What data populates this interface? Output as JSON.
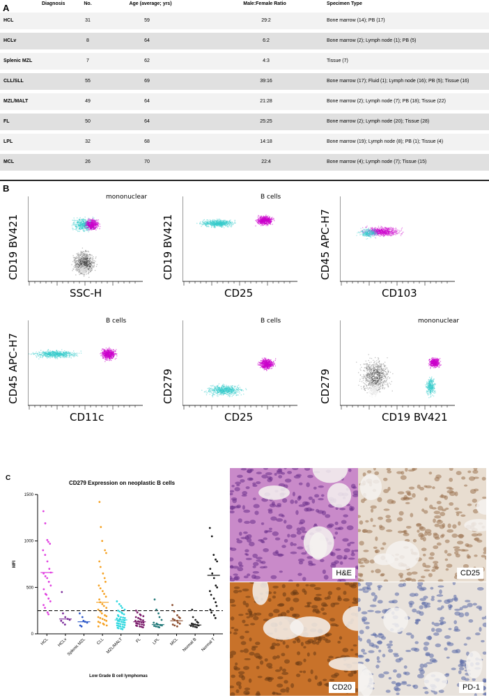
{
  "panels": {
    "a": "A",
    "b": "B",
    "c": "C"
  },
  "table": {
    "headers": [
      "Diagnosis",
      "No.",
      "Age (average; yrs)",
      "Male:Female Ratio",
      "Specimen Type"
    ],
    "rows": [
      [
        "HCL",
        "31",
        "59",
        "29:2",
        "Bone marrow (14); PB (17)"
      ],
      [
        "HCLv",
        "8",
        "64",
        "6:2",
        "Bone marrow (2); Lymph node (1); PB (5)"
      ],
      [
        "Splenic MZL",
        "7",
        "62",
        "4:3",
        "Tissue (7)"
      ],
      [
        "CLL/SLL",
        "55",
        "69",
        "39:16",
        "Bone marrow (17); Fluid (1); Lymph node (16); PB (5); Tissue (16)"
      ],
      [
        "MZL/MALT",
        "49",
        "64",
        "21:28",
        "Bone marrow (2); Lymph node (7); PB (18); Tissue (22)"
      ],
      [
        "FL",
        "50",
        "64",
        "25:25",
        "Bone marrow (2); Lymph node (20); Tissue (28)"
      ],
      [
        "LPL",
        "32",
        "68",
        "14:18",
        "Bone marrow (19); Lymph node (8); PB (1); Tissue (4)"
      ],
      [
        "MCL",
        "26",
        "70",
        "22:4",
        "Bone marrow (4); Lymph node (7); Tissue (15)"
      ]
    ]
  },
  "flow": {
    "plots": [
      {
        "ylabel": "CD19 BV421",
        "xlabel": "SSC-H",
        "gate": "mononuclear"
      },
      {
        "ylabel": "CD19 BV421",
        "xlabel": "CD25",
        "gate": "B cells"
      },
      {
        "ylabel": "CD45 APC-H7",
        "xlabel": "CD103",
        "gate": ""
      },
      {
        "ylabel": "CD45 APC-H7",
        "xlabel": "CD11c",
        "gate": "B cells"
      },
      {
        "ylabel": "CD279",
        "xlabel": "CD25",
        "gate": "B cells"
      },
      {
        "ylabel": "CD279",
        "xlabel": "CD19 BV421",
        "gate": "mononuclear"
      }
    ]
  },
  "chart_data": {
    "type": "scatter",
    "title": "CD279 Expression on neoplastic B cells",
    "xlabel": "Low Grade B cell lymphomas",
    "ylabel": "MFI",
    "ylim": [
      0,
      1500
    ],
    "yticks": [
      0,
      500,
      1000,
      1500
    ],
    "threshold": 250,
    "categories": [
      "HCL",
      "HCLv",
      "Splenic MZL",
      "CLL",
      "MZL/MALT",
      "FL",
      "LPL",
      "MCL",
      "Normal B",
      "Normal T"
    ],
    "colors": [
      "#e040e0",
      "#7a2a9a",
      "#2a56c8",
      "#f5a020",
      "#30d8e0",
      "#7a1a6a",
      "#207878",
      "#8a4a2a",
      "#222222",
      "#111111"
    ],
    "medians": [
      660,
      160,
      130,
      340,
      150,
      130,
      100,
      140,
      95,
      630
    ],
    "values": [
      [
        1320,
        1190,
        1010,
        990,
        970,
        900,
        850,
        780,
        700,
        660,
        650,
        620,
        600,
        560,
        520,
        480,
        430,
        420,
        380,
        350,
        310,
        280,
        230,
        210
      ],
      [
        450,
        220,
        180,
        160,
        150,
        140,
        120,
        100
      ],
      [
        220,
        180,
        140,
        130,
        120,
        90,
        80
      ],
      [
        1420,
        1150,
        1000,
        900,
        870,
        780,
        720,
        650,
        600,
        560,
        520,
        490,
        460,
        430,
        400,
        370,
        340,
        320,
        300,
        280,
        260,
        240,
        220,
        200,
        190,
        180,
        170,
        160,
        150,
        140,
        130,
        120,
        110,
        100,
        90,
        80
      ],
      [
        350,
        320,
        300,
        280,
        260,
        250,
        240,
        230,
        220,
        210,
        200,
        190,
        180,
        175,
        170,
        165,
        160,
        155,
        150,
        145,
        140,
        135,
        130,
        125,
        120,
        115,
        110,
        105,
        100,
        95,
        90,
        85,
        80,
        75,
        70,
        65,
        60,
        55,
        50
      ],
      [
        250,
        230,
        210,
        200,
        190,
        180,
        170,
        160,
        150,
        145,
        140,
        135,
        130,
        125,
        120,
        115,
        110,
        105,
        100,
        95,
        90,
        85,
        80,
        75,
        70
      ],
      [
        370,
        260,
        220,
        180,
        150,
        120,
        110,
        100,
        95,
        90,
        85,
        80,
        75,
        70
      ],
      [
        310,
        240,
        200,
        180,
        170,
        160,
        150,
        140,
        120,
        110,
        100,
        90,
        80
      ],
      [
        260,
        180,
        150,
        130,
        120,
        110,
        105,
        100,
        95,
        90,
        85,
        80,
        75,
        70
      ],
      [
        1140,
        1050,
        850,
        800,
        780,
        700,
        650,
        600,
        520,
        500,
        460,
        420,
        380,
        340,
        300,
        260,
        230,
        200,
        170
      ]
    ]
  },
  "histology": {
    "labels": [
      "H&E",
      "CD25",
      "CD20",
      "PD-1"
    ]
  }
}
